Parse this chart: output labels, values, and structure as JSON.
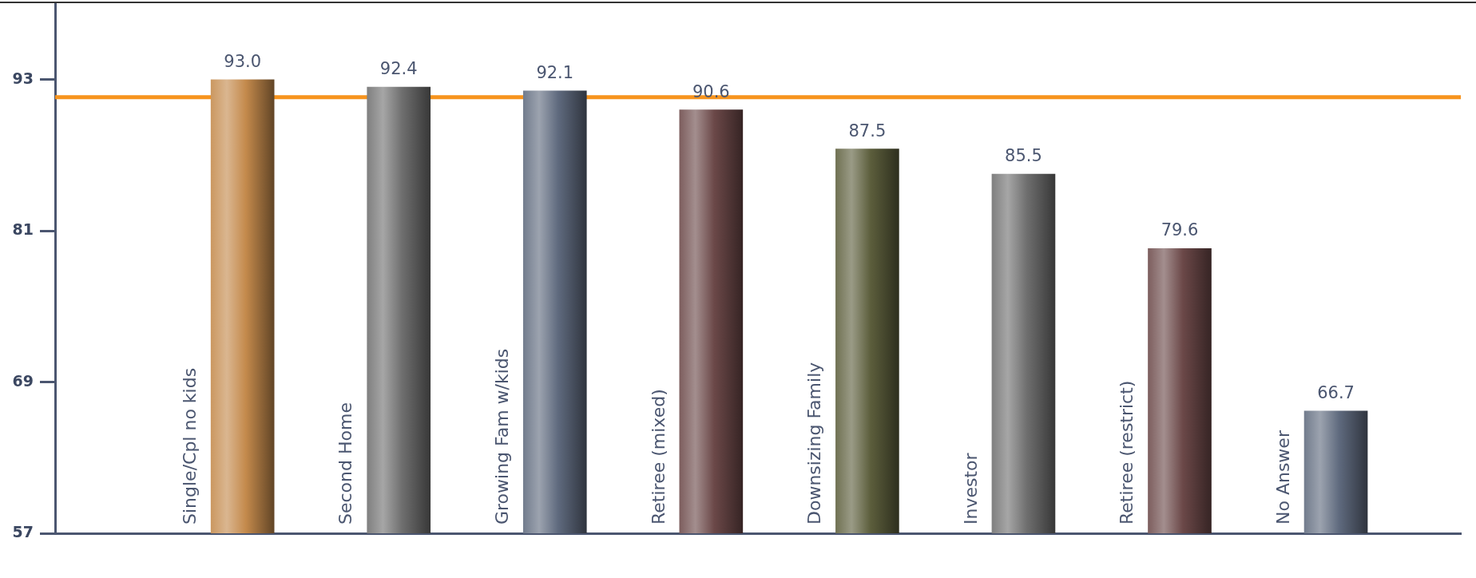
{
  "chart_data": {
    "type": "bar",
    "categories": [
      "Single/Cpl no kids",
      "Second Home",
      "Growing Fam w/kids",
      "Retiree (mixed)",
      "Downsizing Family",
      "Investor",
      "Retiree (restrict)",
      "No Answer"
    ],
    "values": [
      93.0,
      92.4,
      92.1,
      90.6,
      87.5,
      85.5,
      79.6,
      66.7
    ],
    "value_labels": [
      "93.0",
      "92.4",
      "92.1",
      "90.6",
      "87.5",
      "85.5",
      "79.6",
      "66.7"
    ],
    "colors": [
      "#c48a4c",
      "#6f6f6f",
      "#5f6a7e",
      "#6b4848",
      "#5c5e3c",
      "#6f6f6f",
      "#6b4848",
      "#5f6a7e"
    ],
    "ylim": [
      57,
      99
    ],
    "yticks": [
      57,
      69,
      81,
      93
    ],
    "grid": false,
    "legend": false,
    "ref_lines": [
      {
        "axis": "y",
        "value": 91.6,
        "color": "#f7941d"
      }
    ]
  }
}
